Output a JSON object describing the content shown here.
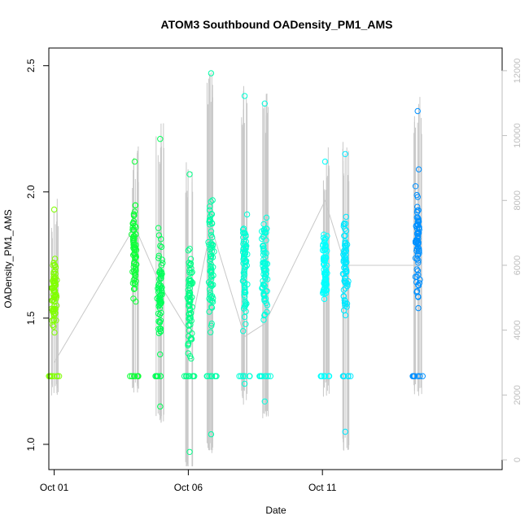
{
  "chart_data": {
    "type": "scatter",
    "title": "ATOM3 Southbound OADensity_PM1_AMS",
    "xlabel": "Date",
    "ylabel": "OADensity_PM1_AMS",
    "grid": false,
    "legend": "none",
    "xlim": [
      -0.2,
      16.7
    ],
    "ylim": [
      0.9,
      2.57
    ],
    "x_ticks": [
      {
        "value": 0,
        "label": "Oct 01"
      },
      {
        "value": 5,
        "label": "Oct 06"
      },
      {
        "value": 10,
        "label": "Oct 11"
      }
    ],
    "y_ticks": [
      "1.0",
      "1.5",
      "2.0",
      "2.5"
    ],
    "y_tick_values": [
      1.0,
      1.5,
      2.0,
      2.5
    ],
    "y2_ticks": [
      "0",
      "2000",
      "4000",
      "6000",
      "8000",
      "10000",
      "12000"
    ],
    "y2_tick_values": [
      0,
      2000,
      4000,
      6000,
      8000,
      10000,
      12000
    ],
    "y2lim": [
      -300,
      12700
    ],
    "colors": {
      "point_gradient": [
        "#80ff00",
        "#00ff40",
        "#00ffd0",
        "#00ffff",
        "#0090ff"
      ],
      "secondary_line": "#c8c8c8",
      "axis": "#000000",
      "secondary_axis": "#bebebe"
    },
    "clusters": [
      {
        "x": 0.0,
        "y_min": 1.27,
        "y_max": 1.93,
        "y_center": 1.6
      },
      {
        "x": 3.0,
        "y_min": 1.27,
        "y_max": 2.12,
        "y_center": 1.75
      },
      {
        "x": 3.95,
        "y_min": 1.15,
        "y_max": 2.21,
        "y_center": 1.6
      },
      {
        "x": 5.05,
        "y_min": 0.97,
        "y_max": 2.07,
        "y_center": 1.55
      },
      {
        "x": 5.85,
        "y_min": 1.04,
        "y_max": 2.47,
        "y_center": 1.7
      },
      {
        "x": 7.1,
        "y_min": 1.24,
        "y_max": 2.38,
        "y_center": 1.7
      },
      {
        "x": 7.85,
        "y_min": 1.17,
        "y_max": 2.35,
        "y_center": 1.7
      },
      {
        "x": 10.1,
        "y_min": 1.27,
        "y_max": 2.12,
        "y_center": 1.7
      },
      {
        "x": 10.85,
        "y_min": 1.05,
        "y_max": 2.15,
        "y_center": 1.7
      },
      {
        "x": 13.55,
        "y_min": 1.27,
        "y_max": 2.32,
        "y_center": 1.8
      }
    ],
    "secondary_series": {
      "name": "",
      "x": [
        0.0,
        3.0,
        3.95,
        5.05,
        5.85,
        7.1,
        7.85,
        10.1,
        10.85,
        13.55
      ],
      "y": [
        3000,
        7200,
        5400,
        3900,
        7200,
        3800,
        4200,
        8000,
        6000,
        6000
      ]
    }
  }
}
